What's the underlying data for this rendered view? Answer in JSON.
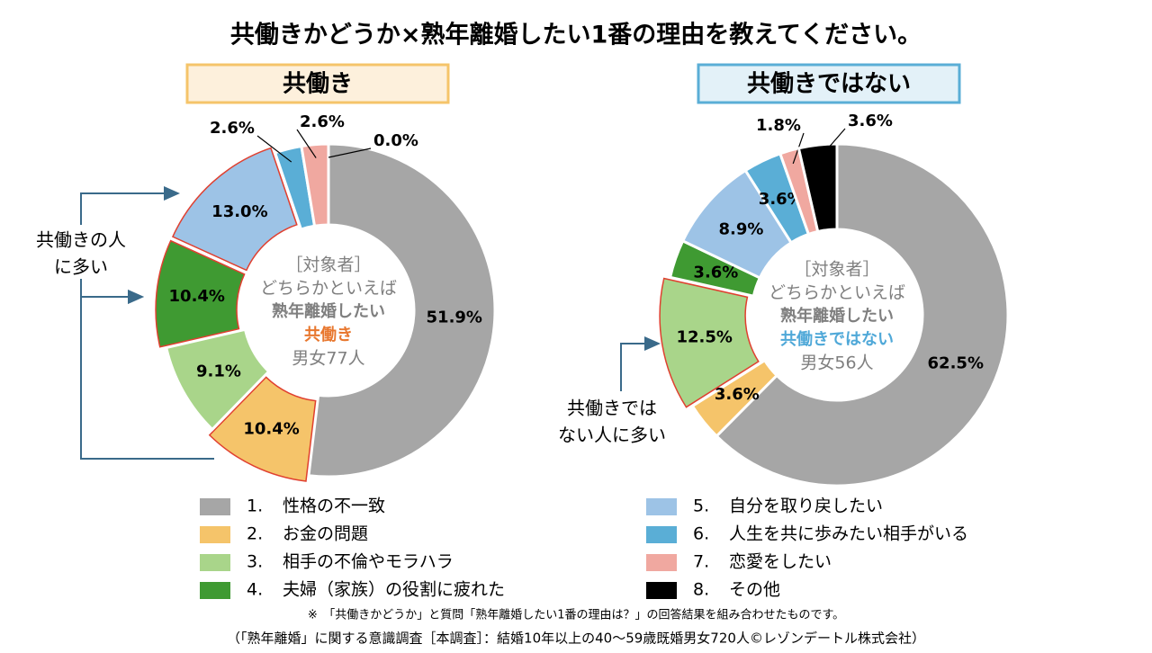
{
  "title": "共働きかどうか×熟年離婚したい1番の理由を教えてください。",
  "legend": {
    "numbers": [
      "1.",
      "2.",
      "3.",
      "4.",
      "5.",
      "6.",
      "7.",
      "8."
    ],
    "categories": [
      "性格の不一致",
      "お金の問題",
      "相手の不倫やモラハラ",
      "夫婦（家族）の役割に疲れた",
      "自分を取り戻したい",
      "人生を共に歩みたい相手がいる",
      "恋愛をしたい",
      "その他"
    ],
    "colors": [
      "#a6a6a6",
      "#f5c46a",
      "#a9d58a",
      "#3f9a32",
      "#9dc3e6",
      "#5aaed6",
      "#f0a8a0",
      "#000000"
    ]
  },
  "chart_data": [
    {
      "type": "donut",
      "title": "共働き",
      "center_lines": [
        "［対象者］",
        "どちらかといえば",
        "熟年離婚したい",
        "共働き",
        "男女77人"
      ],
      "values": [
        51.9,
        10.4,
        9.1,
        10.4,
        13.0,
        2.6,
        2.6,
        0.0
      ],
      "value_labels": [
        "51.9%",
        "10.4%",
        "9.1%",
        "10.4%",
        "13.0%",
        "2.6%",
        "2.6%",
        "0.0%"
      ],
      "outlined": [
        1,
        3,
        4
      ],
      "annotation": [
        "共働きの人",
        "に多い"
      ]
    },
    {
      "type": "donut",
      "title": "共働きではない",
      "center_lines": [
        "［対象者］",
        "どちらかといえば",
        "熟年離婚したい",
        "共働きではない",
        "男女56人"
      ],
      "values": [
        62.5,
        3.6,
        12.5,
        3.6,
        8.9,
        3.6,
        1.8,
        3.6
      ],
      "value_labels": [
        "62.5%",
        "3.6%",
        "12.5%",
        "3.6%",
        "8.9%",
        "3.6%",
        "1.8%",
        "3.6%"
      ],
      "outlined": [
        2
      ],
      "annotation": [
        "共働きでは",
        "ない人に多い"
      ]
    }
  ],
  "footnote": "※　「共働きかどうか」と質問「熟年離婚したい1番の理由は？」の回答結果を組み合わせたものです。",
  "source": "（「熟年離婚」に関する意識調査［本調査］：結婚10年以上の40～59歳既婚男女720人©レゾンデートル株式会社）"
}
